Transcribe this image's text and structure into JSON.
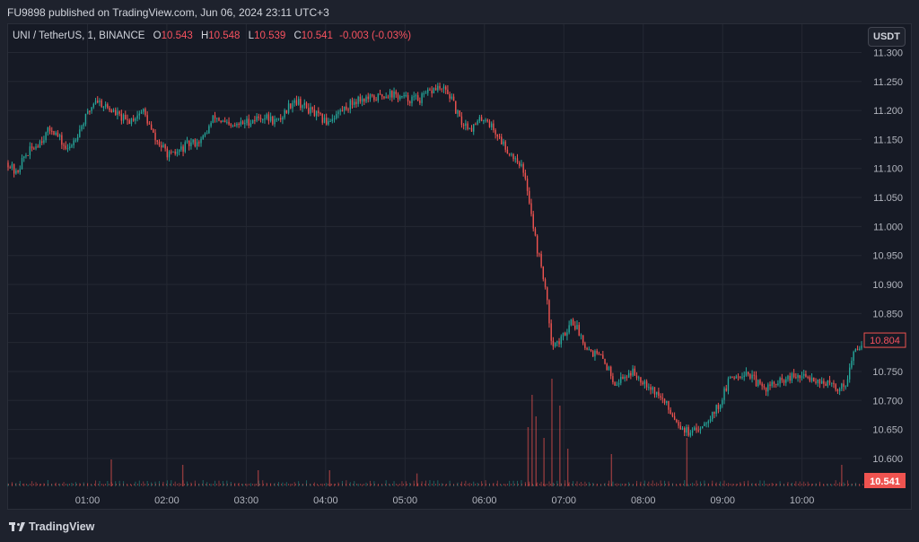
{
  "header": {
    "published": "FU9898 published on TradingView.com, Jun 06, 2024 23:11 UTC+3"
  },
  "legend": {
    "symbol": "UNI / TetherUS, 1, BINANCE",
    "o_label": "O",
    "o_value": "10.543",
    "h_label": "H",
    "h_value": "10.548",
    "l_label": "L",
    "l_value": "10.539",
    "c_label": "C",
    "c_value": "10.541",
    "change": "-0.003 (-0.03%)"
  },
  "currency_button": "USDT",
  "footer": {
    "brand": "TradingView"
  },
  "colors": {
    "up": "#26a69a",
    "down": "#ef5350",
    "grid": "#242833",
    "label_red": "#f7525f"
  },
  "chart_data": {
    "type": "candlestick",
    "title": "",
    "xlabel": "",
    "ylabel": "",
    "ylim": [
      10.555,
      11.31
    ],
    "grid": true,
    "y_ticks": [
      "11.300",
      "11.250",
      "11.200",
      "11.150",
      "11.100",
      "11.050",
      "11.000",
      "10.950",
      "10.900",
      "10.850",
      "10.800",
      "10.750",
      "10.700",
      "10.650",
      "10.600"
    ],
    "x_ticks": [
      "01:00",
      "02:00",
      "03:00",
      "04:00",
      "05:00",
      "06:00",
      "07:00",
      "08:00",
      "09:00",
      "10:00"
    ],
    "x_tick_hours": [
      1,
      2,
      3,
      4,
      5,
      6,
      7,
      8,
      9,
      10
    ],
    "x_range_hours": [
      0.0,
      10.75
    ],
    "price_path": [
      [
        0.0,
        11.11
      ],
      [
        0.1,
        11.09
      ],
      [
        0.2,
        11.12
      ],
      [
        0.35,
        11.14
      ],
      [
        0.55,
        11.17
      ],
      [
        0.75,
        11.13
      ],
      [
        0.95,
        11.18
      ],
      [
        1.1,
        11.22
      ],
      [
        1.3,
        11.2
      ],
      [
        1.5,
        11.18
      ],
      [
        1.7,
        11.2
      ],
      [
        1.85,
        11.15
      ],
      [
        2.05,
        11.12
      ],
      [
        2.25,
        11.14
      ],
      [
        2.45,
        11.15
      ],
      [
        2.6,
        11.19
      ],
      [
        2.8,
        11.17
      ],
      [
        3.0,
        11.18
      ],
      [
        3.2,
        11.19
      ],
      [
        3.4,
        11.18
      ],
      [
        3.6,
        11.22
      ],
      [
        3.8,
        11.2
      ],
      [
        4.0,
        11.18
      ],
      [
        4.2,
        11.2
      ],
      [
        4.4,
        11.22
      ],
      [
        4.6,
        11.22
      ],
      [
        4.8,
        11.23
      ],
      [
        5.0,
        11.22
      ],
      [
        5.2,
        11.22
      ],
      [
        5.4,
        11.24
      ],
      [
        5.55,
        11.23
      ],
      [
        5.7,
        11.18
      ],
      [
        5.85,
        11.17
      ],
      [
        6.0,
        11.19
      ],
      [
        6.15,
        11.16
      ],
      [
        6.3,
        11.13
      ],
      [
        6.45,
        11.11
      ],
      [
        6.55,
        11.06
      ],
      [
        6.65,
        10.97
      ],
      [
        6.75,
        10.91
      ],
      [
        6.85,
        10.8
      ],
      [
        6.95,
        10.8
      ],
      [
        7.1,
        10.84
      ],
      [
        7.3,
        10.79
      ],
      [
        7.5,
        10.77
      ],
      [
        7.65,
        10.73
      ],
      [
        7.85,
        10.75
      ],
      [
        8.05,
        10.73
      ],
      [
        8.25,
        10.7
      ],
      [
        8.45,
        10.66
      ],
      [
        8.6,
        10.64
      ],
      [
        8.75,
        10.66
      ],
      [
        8.95,
        10.69
      ],
      [
        9.1,
        10.74
      ],
      [
        9.3,
        10.75
      ],
      [
        9.5,
        10.72
      ],
      [
        9.7,
        10.73
      ],
      [
        9.9,
        10.74
      ],
      [
        10.1,
        10.74
      ],
      [
        10.3,
        10.73
      ],
      [
        10.45,
        10.72
      ],
      [
        10.55,
        10.73
      ],
      [
        10.65,
        10.78
      ],
      [
        10.75,
        10.8
      ]
    ],
    "volume_spikes": [
      [
        1.3,
        0.25
      ],
      [
        2.2,
        0.2
      ],
      [
        3.15,
        0.15
      ],
      [
        4.05,
        0.15
      ],
      [
        5.15,
        0.12
      ],
      [
        6.55,
        0.55
      ],
      [
        6.6,
        0.85
      ],
      [
        6.65,
        0.65
      ],
      [
        6.75,
        0.45
      ],
      [
        6.85,
        1.0
      ],
      [
        6.95,
        0.75
      ],
      [
        7.05,
        0.35
      ],
      [
        7.6,
        0.3
      ],
      [
        8.55,
        0.45
      ],
      [
        10.5,
        0.2
      ]
    ],
    "price_labels": {
      "current": "10.804",
      "last": "10.541"
    }
  }
}
